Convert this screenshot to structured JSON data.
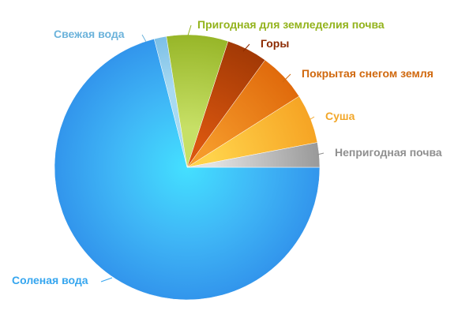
{
  "chart_data": {
    "type": "pie",
    "slices": [
      {
        "label": "Соленая вода",
        "value": 71.0,
        "color": "#3aa2ef"
      },
      {
        "label": "Свежая вода",
        "value": 1.5,
        "color": "#88c6ea"
      },
      {
        "label": "Пригодная для земледелия почва",
        "value": 7.5,
        "color": "#9fbf2a"
      },
      {
        "label": "Горы",
        "value": 5.0,
        "color": "#ad3e06"
      },
      {
        "label": "Покрытая снегом земля",
        "value": 6.0,
        "color": "#e2700e"
      },
      {
        "label": "Суша",
        "value": 6.0,
        "color": "#f8a928"
      },
      {
        "label": "Непригодная почва",
        "value": 3.0,
        "color": "#9c9c9c"
      }
    ],
    "label_colors": [
      "#36a6ef",
      "#6cb3db",
      "#93b31c",
      "#8c2a00",
      "#d0680e",
      "#f2a72a",
      "#8f8f8f"
    ]
  }
}
